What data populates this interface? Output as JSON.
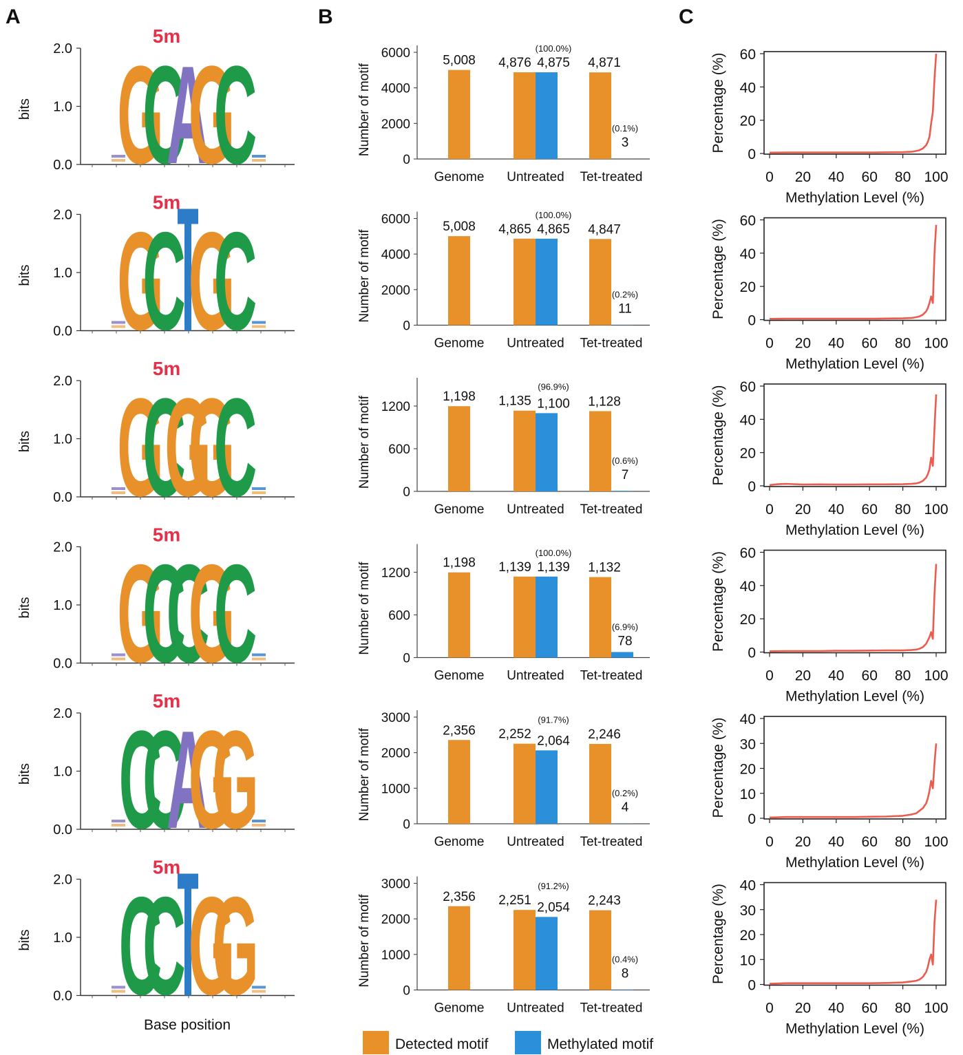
{
  "panel_labels": [
    "A",
    "B",
    "C"
  ],
  "colors": {
    "orange": "#E8912A",
    "green": "#1E9A48",
    "purple": "#8273C2",
    "blue": "#2D7CC8",
    "red": "#E8473D",
    "detected": "#E8912A",
    "methylated": "#2B8FD9",
    "line": "#EC5B4E"
  },
  "logo_axis": {
    "ylabel": "bits",
    "ticks": [
      "0.0",
      "1.0",
      "2.0"
    ]
  },
  "logo_xlabel": "Base position",
  "bar_axis_ylabel": "Number of motif",
  "line_axis": {
    "xlabel": "Methylation Level (%)",
    "ylabel": "Percentage (%)",
    "xticks": [
      "0",
      "20",
      "40",
      "60",
      "80",
      "100"
    ]
  },
  "legend": {
    "detected": "Detected motif",
    "methylated": "Methylated motif"
  },
  "chart_data": [
    {
      "type": "sequence_logo",
      "modification": "5m",
      "motif": [
        "G",
        "C",
        "A",
        "G",
        "C"
      ],
      "ylabel": "bits",
      "ylim": [
        0,
        2.0
      ]
    },
    {
      "type": "sequence_logo",
      "modification": "5m",
      "motif": [
        "G",
        "C",
        "T",
        "G",
        "C"
      ],
      "ylabel": "bits",
      "ylim": [
        0,
        2.0
      ]
    },
    {
      "type": "sequence_logo",
      "modification": "5m",
      "motif": [
        "G",
        "C",
        "G",
        "G",
        "C"
      ],
      "ylabel": "bits",
      "ylim": [
        0,
        2.0
      ]
    },
    {
      "type": "sequence_logo",
      "modification": "5m",
      "motif": [
        "G",
        "C",
        "C",
        "G",
        "C"
      ],
      "ylabel": "bits",
      "ylim": [
        0,
        2.0
      ]
    },
    {
      "type": "sequence_logo",
      "modification": "5m",
      "motif": [
        "C",
        "C",
        "A",
        "G",
        "G"
      ],
      "ylabel": "bits",
      "ylim": [
        0,
        2.0
      ]
    },
    {
      "type": "sequence_logo",
      "modification": "5m",
      "motif": [
        "C",
        "C",
        "T",
        "G",
        "G"
      ],
      "ylabel": "bits",
      "ylim": [
        0,
        2.0
      ],
      "xlabel": "Base position"
    },
    {
      "type": "bar",
      "categories": [
        "Genome",
        "Untreated",
        "Tet-treated"
      ],
      "ylabel": "Number of motif",
      "yticks": [
        0,
        2000,
        4000,
        6000
      ],
      "ylim": [
        0,
        6000
      ],
      "series": [
        {
          "name": "Detected motif",
          "values": [
            5008,
            4876,
            4871
          ],
          "labels": [
            "5,008",
            "4,876",
            "4,871"
          ]
        },
        {
          "name": "Methylated motif",
          "values": [
            null,
            4875,
            3
          ],
          "labels": [
            "",
            "4,875",
            "3"
          ],
          "percent": [
            "",
            "(100.0%)",
            "(0.1%)"
          ]
        }
      ]
    },
    {
      "type": "bar",
      "categories": [
        "Genome",
        "Untreated",
        "Tet-treated"
      ],
      "ylabel": "Number of motif",
      "yticks": [
        0,
        2000,
        4000,
        6000
      ],
      "ylim": [
        0,
        6000
      ],
      "series": [
        {
          "name": "Detected motif",
          "values": [
            5008,
            4865,
            4847
          ],
          "labels": [
            "5,008",
            "4,865",
            "4,847"
          ]
        },
        {
          "name": "Methylated motif",
          "values": [
            null,
            4865,
            11
          ],
          "labels": [
            "",
            "4,865",
            "11"
          ],
          "percent": [
            "",
            "(100.0%)",
            "(0.2%)"
          ]
        }
      ]
    },
    {
      "type": "bar",
      "categories": [
        "Genome",
        "Untreated",
        "Tet-treated"
      ],
      "ylabel": "Number of motif",
      "yticks": [
        0,
        600,
        1200
      ],
      "ylim": [
        0,
        1500
      ],
      "series": [
        {
          "name": "Detected motif",
          "values": [
            1198,
            1135,
            1128
          ],
          "labels": [
            "1,198",
            "1,135",
            "1,128"
          ]
        },
        {
          "name": "Methylated motif",
          "values": [
            null,
            1100,
            7
          ],
          "labels": [
            "",
            "1,100",
            "7"
          ],
          "percent": [
            "",
            "(96.9%)",
            "(0.6%)"
          ]
        }
      ]
    },
    {
      "type": "bar",
      "categories": [
        "Genome",
        "Untreated",
        "Tet-treated"
      ],
      "ylabel": "Number of motif",
      "yticks": [
        0,
        600,
        1200
      ],
      "ylim": [
        0,
        1500
      ],
      "series": [
        {
          "name": "Detected motif",
          "values": [
            1198,
            1139,
            1132
          ],
          "labels": [
            "1,198",
            "1,139",
            "1,132"
          ]
        },
        {
          "name": "Methylated motif",
          "values": [
            null,
            1139,
            78
          ],
          "labels": [
            "",
            "1,139",
            "78"
          ],
          "percent": [
            "",
            "(100.0%)",
            "(6.9%)"
          ]
        }
      ]
    },
    {
      "type": "bar",
      "categories": [
        "Genome",
        "Untreated",
        "Tet-treated"
      ],
      "ylabel": "Number of motif",
      "yticks": [
        0,
        1000,
        2000,
        3000
      ],
      "ylim": [
        0,
        3000
      ],
      "series": [
        {
          "name": "Detected motif",
          "values": [
            2356,
            2252,
            2246
          ],
          "labels": [
            "2,356",
            "2,252",
            "2,246"
          ]
        },
        {
          "name": "Methylated motif",
          "values": [
            null,
            2064,
            4
          ],
          "labels": [
            "",
            "2,064",
            "4"
          ],
          "percent": [
            "",
            "(91.7%)",
            "(0.2%)"
          ]
        }
      ]
    },
    {
      "type": "bar",
      "categories": [
        "Genome",
        "Untreated",
        "Tet-treated"
      ],
      "ylabel": "Number of motif",
      "yticks": [
        0,
        1000,
        2000,
        3000
      ],
      "ylim": [
        0,
        3000
      ],
      "series": [
        {
          "name": "Detected motif",
          "values": [
            2356,
            2251,
            2243
          ],
          "labels": [
            "2,356",
            "2,251",
            "2,243"
          ]
        },
        {
          "name": "Methylated motif",
          "values": [
            null,
            2054,
            8
          ],
          "labels": [
            "",
            "2,054",
            "8"
          ],
          "percent": [
            "",
            "(91.2%)",
            "(0.4%)"
          ]
        }
      ]
    },
    {
      "type": "line",
      "xlabel": "Methylation Level (%)",
      "ylabel": "Percentage (%)",
      "xlim": [
        0,
        100
      ],
      "ylim": [
        0,
        60
      ],
      "yticks": [
        0,
        20,
        40,
        60
      ],
      "x": [
        0,
        10,
        20,
        30,
        40,
        50,
        60,
        70,
        80,
        85,
        88,
        90,
        92,
        94,
        95,
        96,
        97,
        98,
        99,
        100
      ],
      "y": [
        0.5,
        0.6,
        0.6,
        0.6,
        0.6,
        0.6,
        0.6,
        0.7,
        0.8,
        1,
        1.5,
        2,
        3,
        5,
        7,
        10,
        18,
        25,
        45,
        60
      ]
    },
    {
      "type": "line",
      "xlabel": "Methylation Level (%)",
      "ylabel": "Percentage (%)",
      "xlim": [
        0,
        100
      ],
      "ylim": [
        0,
        60
      ],
      "yticks": [
        0,
        20,
        40,
        60
      ],
      "x": [
        0,
        10,
        20,
        30,
        40,
        50,
        60,
        70,
        80,
        85,
        88,
        90,
        92,
        94,
        95,
        96,
        97,
        98,
        99,
        100
      ],
      "y": [
        0.5,
        0.6,
        0.6,
        0.6,
        0.6,
        0.6,
        0.6,
        0.7,
        0.8,
        1,
        1.5,
        2,
        3,
        5,
        7,
        10,
        14,
        10,
        40,
        57
      ]
    },
    {
      "type": "line",
      "xlabel": "Methylation Level (%)",
      "ylabel": "Percentage (%)",
      "xlim": [
        0,
        100
      ],
      "ylim": [
        0,
        60
      ],
      "yticks": [
        0,
        20,
        40,
        60
      ],
      "x": [
        0,
        5,
        10,
        20,
        30,
        40,
        50,
        60,
        70,
        80,
        85,
        88,
        90,
        92,
        94,
        95,
        96,
        97,
        98,
        99,
        100
      ],
      "y": [
        0.5,
        1,
        1.2,
        0.8,
        0.9,
        0.8,
        0.8,
        0.9,
        0.9,
        1,
        1.2,
        1.5,
        2,
        3,
        5,
        7,
        10,
        17,
        12,
        35,
        55
      ]
    },
    {
      "type": "line",
      "xlabel": "Methylation Level (%)",
      "ylabel": "Percentage (%)",
      "xlim": [
        0,
        100
      ],
      "ylim": [
        0,
        60
      ],
      "yticks": [
        0,
        20,
        40,
        60
      ],
      "x": [
        0,
        10,
        20,
        30,
        40,
        50,
        60,
        70,
        80,
        85,
        88,
        90,
        92,
        94,
        95,
        96,
        97,
        98,
        99,
        100
      ],
      "y": [
        0.5,
        0.6,
        0.6,
        0.6,
        0.8,
        0.8,
        0.9,
        1,
        1,
        1.2,
        1.5,
        2,
        3,
        5,
        7,
        9,
        12,
        8,
        35,
        53
      ]
    },
    {
      "type": "line",
      "xlabel": "Methylation Level (%)",
      "ylabel": "Percentage (%)",
      "xlim": [
        0,
        100
      ],
      "ylim": [
        0,
        40
      ],
      "yticks": [
        0,
        10,
        20,
        30,
        40
      ],
      "x": [
        0,
        10,
        20,
        30,
        40,
        50,
        60,
        70,
        80,
        85,
        88,
        90,
        92,
        94,
        95,
        96,
        97,
        98,
        99,
        100
      ],
      "y": [
        0.3,
        0.5,
        0.5,
        0.5,
        0.5,
        0.5,
        0.6,
        0.7,
        1,
        1.5,
        2,
        3,
        4,
        6,
        8,
        11,
        15,
        12,
        22,
        30
      ]
    },
    {
      "type": "line",
      "xlabel": "Methylation Level (%)",
      "ylabel": "Percentage (%)",
      "xlim": [
        0,
        100
      ],
      "ylim": [
        0,
        40
      ],
      "yticks": [
        0,
        10,
        20,
        30,
        40
      ],
      "x": [
        0,
        10,
        20,
        30,
        40,
        50,
        60,
        70,
        80,
        85,
        88,
        90,
        92,
        94,
        95,
        96,
        97,
        98,
        99,
        100
      ],
      "y": [
        0.3,
        0.5,
        0.5,
        0.5,
        0.5,
        0.5,
        0.5,
        0.6,
        0.8,
        1.2,
        1.5,
        2,
        3,
        5,
        7,
        10,
        12,
        8,
        25,
        34
      ]
    }
  ]
}
